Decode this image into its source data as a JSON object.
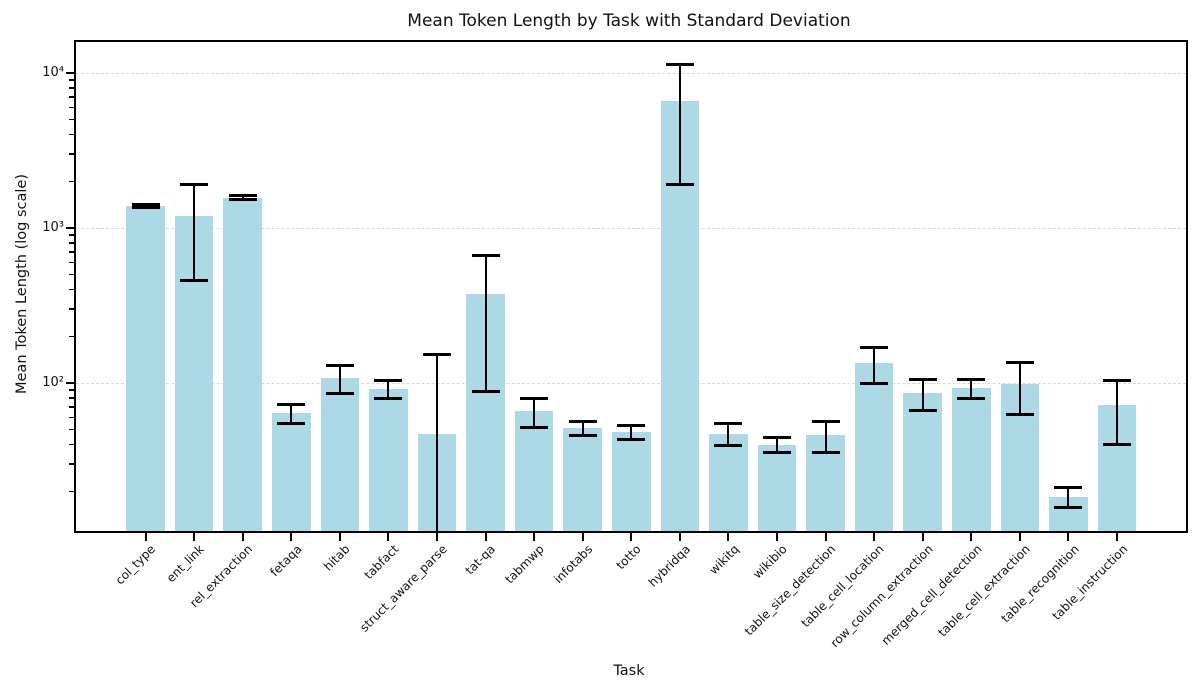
{
  "figure": {
    "background": "#ffffff"
  },
  "chart_data": {
    "type": "bar",
    "title": "Mean Token Length by Task with Standard Deviation",
    "xlabel": "Task",
    "ylabel": "Mean Token Length (log scale)",
    "yscale": "log",
    "ylim": [
      11.1,
      15850
    ],
    "yticks": [
      100,
      1000,
      10000
    ],
    "ytick_labels": [
      "10²",
      "10³",
      "10⁴"
    ],
    "grid": "horizontal-dashed",
    "legend": "none",
    "bar_color": "#add8e6",
    "error_color": "#000000",
    "grid_color": "#d9d9d9",
    "categories": [
      "col_type",
      "ent_link",
      "rel_extraction",
      "fetaqa",
      "hitab",
      "tabfact",
      "struct_aware_parse",
      "tat-qa",
      "tabmwp",
      "infotabs",
      "totto",
      "hybridqa",
      "wikitq",
      "wikibio",
      "table_size_detection",
      "table_cell_location",
      "row_column_extraction",
      "merged_cell_detection",
      "table_cell_extraction",
      "table_recognition",
      "table_instruction"
    ],
    "series": [
      {
        "name": "mean_token_length",
        "values": [
          1390,
          1190,
          1570,
          64,
          107,
          92,
          47,
          374,
          66,
          51.5,
          48,
          6600,
          47,
          40,
          46,
          134,
          86,
          93,
          99,
          18.5,
          72
        ]
      },
      {
        "name": "std_deviation",
        "values": [
          25,
          730,
          45,
          9,
          22,
          12,
          105,
          286,
          14,
          5.3,
          5,
          4700,
          7.5,
          4.5,
          10.5,
          35,
          20,
          13,
          36,
          2.8,
          32
        ]
      }
    ]
  }
}
